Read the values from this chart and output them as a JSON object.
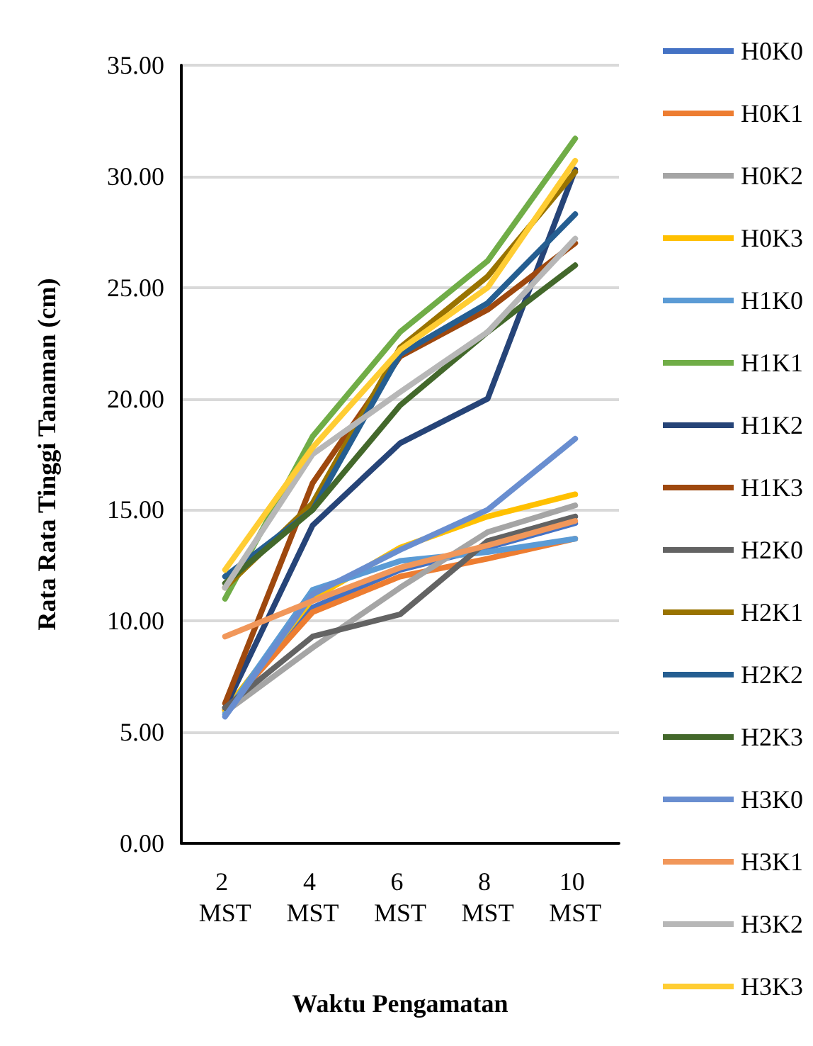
{
  "chart_data": {
    "type": "line",
    "xlabel": "Waktu Pengamatan",
    "ylabel": "Rata Rata Tinggi Tanaman (cm)",
    "categories": [
      "2 MST",
      "4 MST",
      "6 MST",
      "8 MST",
      "10 MST"
    ],
    "ylim": [
      0,
      35
    ],
    "yticks": [
      {
        "value": 0,
        "label": "0.00"
      },
      {
        "value": 5,
        "label": "5.00"
      },
      {
        "value": 10,
        "label": "10.00"
      },
      {
        "value": 15,
        "label": "15.00"
      },
      {
        "value": 20,
        "label": "20.00"
      },
      {
        "value": 25,
        "label": "25.00"
      },
      {
        "value": 30,
        "label": "30.00"
      },
      {
        "value": 35,
        "label": "35.00"
      }
    ],
    "grid": "y",
    "legend": "right",
    "marker": "none",
    "line_style": "solid",
    "series": [
      {
        "name": "H0K0",
        "color": "#4472c4",
        "values": [
          6.0,
          10.6,
          12.3,
          13.3,
          14.4
        ]
      },
      {
        "name": "H0K1",
        "color": "#ed7d31",
        "values": [
          6.0,
          10.4,
          12.0,
          12.8,
          13.7
        ]
      },
      {
        "name": "H0K2",
        "color": "#a5a5a5",
        "values": [
          5.9,
          8.8,
          11.5,
          14.0,
          15.2
        ]
      },
      {
        "name": "H0K3",
        "color": "#ffc000",
        "values": [
          6.0,
          11.0,
          13.3,
          14.7,
          15.7
        ]
      },
      {
        "name": "H1K0",
        "color": "#5b9bd5",
        "values": [
          5.8,
          11.4,
          12.7,
          13.1,
          13.7
        ]
      },
      {
        "name": "H1K1",
        "color": "#70ad47",
        "values": [
          11.0,
          18.3,
          23.0,
          26.2,
          31.7
        ]
      },
      {
        "name": "H1K2",
        "color": "#264478",
        "values": [
          6.1,
          14.3,
          18.0,
          20.0,
          30.3
        ]
      },
      {
        "name": "H1K3",
        "color": "#9e480e",
        "values": [
          6.3,
          16.2,
          21.9,
          24.0,
          27.0
        ]
      },
      {
        "name": "H2K0",
        "color": "#636363",
        "values": [
          6.1,
          9.3,
          10.3,
          13.6,
          14.7
        ]
      },
      {
        "name": "H2K1",
        "color": "#997300",
        "values": [
          11.5,
          15.3,
          22.3,
          25.5,
          30.2
        ]
      },
      {
        "name": "H2K2",
        "color": "#255e91",
        "values": [
          12.0,
          15.0,
          22.0,
          24.3,
          28.3
        ]
      },
      {
        "name": "H2K3",
        "color": "#43682b",
        "values": [
          11.7,
          15.0,
          19.7,
          23.0,
          26.0
        ]
      },
      {
        "name": "H3K0",
        "color": "#698ed0",
        "values": [
          5.7,
          11.2,
          13.2,
          15.0,
          18.2
        ]
      },
      {
        "name": "H3K1",
        "color": "#f1975a",
        "values": [
          9.3,
          10.9,
          12.4,
          13.4,
          14.5
        ]
      },
      {
        "name": "H3K2",
        "color": "#b7b7b7",
        "values": [
          11.5,
          17.5,
          20.3,
          23.0,
          27.2
        ]
      },
      {
        "name": "H3K3",
        "color": "#ffcd33",
        "values": [
          12.3,
          17.8,
          22.2,
          25.0,
          30.7
        ]
      }
    ]
  }
}
